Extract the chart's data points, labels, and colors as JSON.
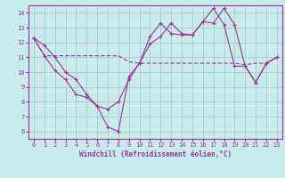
{
  "background_color": "#c8ecec",
  "grid_color": "#b0c8c8",
  "line_color": "#993399",
  "xlabel": "Windchill (Refroidissement éolien,°C)",
  "xlim": [
    -0.5,
    23.5
  ],
  "ylim": [
    5.5,
    14.5
  ],
  "yticks": [
    6,
    7,
    8,
    9,
    10,
    11,
    12,
    13,
    14
  ],
  "xticks": [
    0,
    1,
    2,
    3,
    4,
    5,
    6,
    7,
    8,
    9,
    10,
    11,
    12,
    13,
    14,
    15,
    16,
    17,
    18,
    19,
    20,
    21,
    22,
    23
  ],
  "series1_x": [
    0,
    1,
    2,
    3,
    4,
    5,
    6,
    7,
    8,
    9,
    10,
    11,
    12,
    13,
    14,
    15,
    16,
    17,
    18,
    19,
    20,
    21,
    22,
    23
  ],
  "series1_y": [
    12.3,
    11.8,
    11.0,
    10.0,
    9.5,
    8.5,
    7.7,
    7.5,
    8.0,
    9.5,
    10.6,
    11.9,
    12.4,
    13.3,
    12.6,
    12.5,
    13.4,
    13.3,
    14.3,
    13.2,
    10.4,
    9.3,
    10.6,
    11.0
  ],
  "series2_x": [
    0,
    1,
    2,
    3,
    4,
    5,
    6,
    7,
    8,
    9,
    10,
    11,
    12,
    13,
    14,
    15,
    16,
    17,
    18,
    19,
    20,
    21,
    22,
    23
  ],
  "series2_y": [
    12.3,
    11.1,
    11.1,
    11.1,
    11.1,
    11.1,
    11.1,
    11.1,
    11.1,
    10.7,
    10.6,
    10.6,
    10.6,
    10.6,
    10.6,
    10.6,
    10.6,
    10.6,
    10.6,
    10.6,
    10.5,
    10.6,
    10.6,
    11.0
  ],
  "series3_x": [
    0,
    1,
    2,
    3,
    4,
    5,
    6,
    7,
    8,
    9,
    10,
    11,
    12,
    13,
    14,
    15,
    16,
    17,
    18,
    19,
    20,
    21,
    22,
    23
  ],
  "series3_y": [
    12.3,
    11.1,
    10.1,
    9.5,
    8.5,
    8.3,
    7.7,
    6.3,
    6.0,
    9.7,
    10.6,
    12.4,
    13.3,
    12.6,
    12.5,
    12.5,
    13.4,
    14.3,
    13.2,
    10.4,
    10.4,
    9.3,
    10.6,
    11.0
  ]
}
